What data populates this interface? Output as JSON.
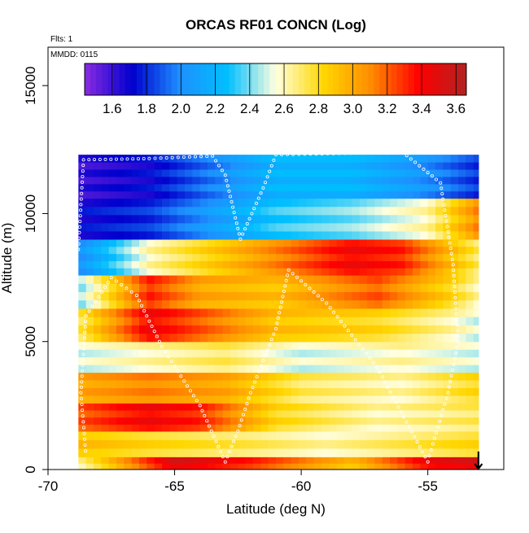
{
  "chart_data": {
    "type": "heatmap",
    "title": "ORCAS RF01 CONCN (Log)",
    "annotations": {
      "flights": "Flts: 1",
      "date": "MMDD: 0115"
    },
    "xlabel": "Latitude (deg N)",
    "ylabel": "Altitude (m)",
    "xlim": [
      -70,
      -52
    ],
    "ylim": [
      0,
      16500
    ],
    "x_ticks": [
      -70,
      -65,
      -60,
      -55
    ],
    "x_tick_labels": [
      "-70",
      "-65",
      "-60",
      "-55"
    ],
    "y_ticks": [
      0,
      5000,
      10000,
      15000
    ],
    "y_tick_labels": [
      "0",
      "5000",
      "10000",
      "15000"
    ],
    "colorbar": {
      "placement": "top inside plot",
      "range": [
        1.44,
        3.66
      ],
      "ticks": [
        1.6,
        1.8,
        2.0,
        2.2,
        2.4,
        2.6,
        2.8,
        3.0,
        3.2,
        3.4,
        3.6
      ],
      "tick_labels": [
        "1.6",
        "1.8",
        "2.0",
        "2.2",
        "2.4",
        "2.6",
        "2.8",
        "3.0",
        "3.2",
        "3.4",
        "3.6"
      ],
      "stops": [
        "#8a2be2",
        "#0000cd",
        "#1e90ff",
        "#00bfff",
        "#ffffe0",
        "#ffd700",
        "#ff8c00",
        "#ff0000",
        "#b22222"
      ]
    },
    "grid": false,
    "latitude_range": [
      -68.8,
      -53.0
    ],
    "altitude_range": [
      0,
      12300
    ],
    "layers": [
      {
        "alt": [
          0,
          500
        ],
        "lat_values": [
          [
            -68.8,
            2.6
          ],
          [
            -65,
            3.5
          ],
          [
            -62,
            3.3
          ],
          [
            -58,
            2.9
          ],
          [
            -55,
            3.4
          ],
          [
            -53,
            3.5
          ]
        ]
      },
      {
        "alt": [
          500,
          1500
        ],
        "lat_values": [
          [
            -68.8,
            2.9
          ],
          [
            -66,
            2.8
          ],
          [
            -62,
            2.7
          ],
          [
            -59,
            2.6
          ],
          [
            -56,
            2.7
          ],
          [
            -53,
            2.8
          ]
        ]
      },
      {
        "alt": [
          1500,
          2600
        ],
        "lat_values": [
          [
            -68.8,
            3.2
          ],
          [
            -66,
            3.4
          ],
          [
            -64,
            3.3
          ],
          [
            -61,
            2.8
          ],
          [
            -57,
            2.6
          ],
          [
            -53,
            2.7
          ]
        ]
      },
      {
        "alt": [
          2600,
          3800
        ],
        "lat_values": [
          [
            -68.8,
            3.0
          ],
          [
            -66,
            3.1
          ],
          [
            -63,
            3.0
          ],
          [
            -60,
            2.7
          ],
          [
            -56,
            2.6
          ],
          [
            -53,
            2.8
          ]
        ]
      },
      {
        "alt": [
          3800,
          5000
        ],
        "lat_values": [
          [
            -68.8,
            2.5
          ],
          [
            -66,
            2.6
          ],
          [
            -63,
            2.7
          ],
          [
            -60,
            2.5
          ],
          [
            -56,
            2.6
          ],
          [
            -53,
            2.5
          ]
        ]
      },
      {
        "alt": [
          5000,
          6300
        ],
        "lat_values": [
          [
            -68.8,
            2.7
          ],
          [
            -66,
            3.4
          ],
          [
            -64,
            3.2
          ],
          [
            -61,
            2.9
          ],
          [
            -57,
            2.8
          ],
          [
            -54,
            2.6
          ],
          [
            -53,
            2.5
          ]
        ]
      },
      {
        "alt": [
          6300,
          7600
        ],
        "lat_values": [
          [
            -68.8,
            2.4
          ],
          [
            -66,
            3.3
          ],
          [
            -64,
            3.0
          ],
          [
            -61,
            2.9
          ],
          [
            -57,
            3.2
          ],
          [
            -54,
            2.8
          ],
          [
            -53,
            2.6
          ]
        ]
      },
      {
        "alt": [
          7600,
          9000
        ],
        "lat_values": [
          [
            -68.8,
            2.0
          ],
          [
            -66,
            2.6
          ],
          [
            -63,
            2.9
          ],
          [
            -61,
            3.1
          ],
          [
            -58,
            3.4
          ],
          [
            -56,
            3.3
          ],
          [
            -53,
            2.7
          ]
        ]
      },
      {
        "alt": [
          9000,
          10600
        ],
        "lat_values": [
          [
            -68.8,
            1.7
          ],
          [
            -66,
            1.8
          ],
          [
            -64,
            2.0
          ],
          [
            -61,
            2.3
          ],
          [
            -58,
            2.4
          ],
          [
            -55,
            2.6
          ],
          [
            -53,
            3.1
          ]
        ]
      },
      {
        "alt": [
          10600,
          12300
        ],
        "lat_values": [
          [
            -68.8,
            1.6
          ],
          [
            -66,
            1.7
          ],
          [
            -64,
            1.9
          ],
          [
            -61,
            2.2
          ],
          [
            -58,
            2.2
          ],
          [
            -55,
            2.0
          ],
          [
            -53,
            1.8
          ]
        ]
      }
    ],
    "flight_track": [
      [
        -68.8,
        8600
      ],
      [
        -68.6,
        12100
      ],
      [
        -66,
        12150
      ],
      [
        -63.5,
        12250
      ],
      [
        -63,
        11500
      ],
      [
        -62.4,
        9000
      ],
      [
        -61.5,
        11000
      ],
      [
        -61,
        12300
      ],
      [
        -56,
        12400
      ],
      [
        -54.5,
        11200
      ],
      [
        -54,
        8000
      ],
      [
        -53.8,
        5000
      ],
      [
        -54.2,
        3000
      ],
      [
        -54.8,
        1000
      ],
      [
        -55,
        300
      ],
      [
        -57,
        4000
      ],
      [
        -59,
        6500
      ],
      [
        -60.5,
        7800
      ],
      [
        -61,
        5500
      ],
      [
        -62,
        3000
      ],
      [
        -62.5,
        1500
      ],
      [
        -63,
        300
      ],
      [
        -64,
        2500
      ],
      [
        -65.5,
        4800
      ],
      [
        -66.5,
        6800
      ],
      [
        -67.5,
        7500
      ],
      [
        -68.5,
        6000
      ],
      [
        -68.7,
        3000
      ],
      [
        -68.5,
        500
      ]
    ],
    "end_marker": {
      "lat": -53.0,
      "alt": 450
    }
  }
}
